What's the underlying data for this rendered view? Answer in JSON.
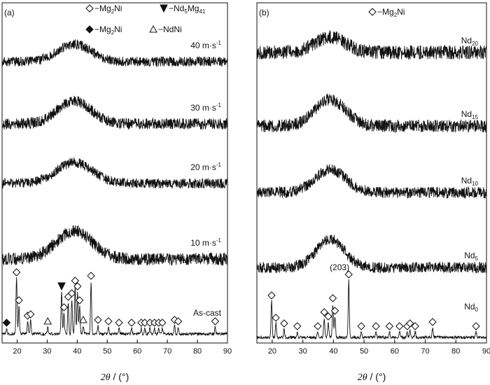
{
  "chart_data": [
    {
      "panel_label": "(a)",
      "type": "line",
      "xlim": [
        15,
        90
      ],
      "xticks": [
        20,
        30,
        40,
        50,
        60,
        70,
        80,
        90
      ],
      "xlabel": {
        "sym": "2θ",
        "unit": " / (°)"
      },
      "legend": [
        {
          "marker": "open-diamond",
          "text": "−Mg",
          "sub": "2",
          "text2": "Ni",
          "sub2": ""
        },
        {
          "marker": "filled-triangle-down",
          "text": "−Nd",
          "sub": "5",
          "text2": "Mg",
          "sub2": "41"
        },
        {
          "marker": "filled-diamond",
          "text": "−Mg",
          "sub": "2",
          "text2": "Ni",
          "sub2": ""
        },
        {
          "marker": "open-triangle",
          "text": "−NdNi",
          "sub": "",
          "text2": "",
          "sub2": ""
        }
      ],
      "legend_placement": "top",
      "series": [
        {
          "name": "40 m·s",
          "sup": "-1",
          "kind": "amorphous",
          "baseline": 88,
          "hump_center": 39,
          "hump_height": 25,
          "hump_width": 5.5,
          "noise": 7
        },
        {
          "name": "30 m·s",
          "sup": "-1",
          "kind": "amorphous",
          "baseline": 177,
          "hump_center": 39,
          "hump_height": 33,
          "hump_width": 5.5,
          "noise": 8
        },
        {
          "name": "20 m·s",
          "sup": "-1",
          "kind": "amorphous",
          "baseline": 262,
          "hump_center": 39,
          "hump_height": 30,
          "hump_width": 6,
          "noise": 7
        },
        {
          "name": "10 m·s",
          "sup": "-1",
          "kind": "amorphous",
          "baseline": 370,
          "hump_center": 39,
          "hump_height": 40,
          "hump_width": 6,
          "noise": 9
        },
        {
          "name": "As-cast",
          "sup": "",
          "kind": "crystalline",
          "baseline": 477,
          "noise": 2,
          "peaks": [
            {
              "x": 16.5,
              "h": 8,
              "marker": "filled-diamond"
            },
            {
              "x": 19.8,
              "h": 80,
              "marker": "open-diamond"
            },
            {
              "x": 20.6,
              "h": 40,
              "marker": "open-diamond"
            },
            {
              "x": 23.5,
              "h": 18,
              "marker": "open-diamond"
            },
            {
              "x": 24.5,
              "h": 20,
              "marker": "open-diamond"
            },
            {
              "x": 30.2,
              "h": 10,
              "marker": "open-triangle"
            },
            {
              "x": 34.8,
              "h": 60,
              "marker": "filled-triangle-down"
            },
            {
              "x": 35.6,
              "h": 30,
              "marker": "open-diamond"
            },
            {
              "x": 37.0,
              "h": 45,
              "marker": "open-diamond"
            },
            {
              "x": 38.2,
              "h": 50,
              "marker": "open-diamond"
            },
            {
              "x": 39.3,
              "h": 68,
              "marker": "open-diamond"
            },
            {
              "x": 40.1,
              "h": 60,
              "marker": "open-diamond"
            },
            {
              "x": 40.8,
              "h": 40,
              "marker": "open-diamond"
            },
            {
              "x": 42.0,
              "h": 12,
              "marker": "open-triangle"
            },
            {
              "x": 44.6,
              "h": 75,
              "marker": "open-diamond"
            },
            {
              "x": 46.9,
              "h": 12,
              "marker": "open-diamond"
            },
            {
              "x": 50.4,
              "h": 10,
              "marker": "open-diamond"
            },
            {
              "x": 53.9,
              "h": 8,
              "marker": "open-diamond"
            },
            {
              "x": 58.1,
              "h": 8,
              "marker": "open-diamond"
            },
            {
              "x": 61.3,
              "h": 8,
              "marker": "open-diamond"
            },
            {
              "x": 62.5,
              "h": 8,
              "marker": "open-diamond"
            },
            {
              "x": 64.2,
              "h": 8,
              "marker": "open-diamond"
            },
            {
              "x": 65.7,
              "h": 8,
              "marker": "open-diamond"
            },
            {
              "x": 67.1,
              "h": 8,
              "marker": "open-diamond"
            },
            {
              "x": 68.3,
              "h": 8,
              "marker": "open-diamond"
            },
            {
              "x": 72.4,
              "h": 12,
              "marker": "open-diamond"
            },
            {
              "x": 73.6,
              "h": 10,
              "marker": "open-diamond"
            },
            {
              "x": 85.9,
              "h": 10,
              "marker": "open-diamond"
            }
          ]
        }
      ]
    },
    {
      "panel_label": "(b)",
      "type": "line",
      "xlim": [
        15,
        90
      ],
      "xticks": [
        20,
        30,
        40,
        50,
        60,
        70,
        80,
        90
      ],
      "xlabel": {
        "sym": "2θ",
        "unit": " / (°)"
      },
      "legend": [
        {
          "marker": "open-diamond",
          "text": "−Mg",
          "sub": "2",
          "text2": "Ni",
          "sub2": ""
        }
      ],
      "legend_placement": "top",
      "series": [
        {
          "name": "Nd",
          "sub": "20",
          "kind": "amorphous",
          "baseline": 75,
          "hump_center": 39,
          "hump_height": 22,
          "hump_width": 5,
          "noise": 10
        },
        {
          "name": "Nd",
          "sub": "15",
          "kind": "amorphous",
          "baseline": 180,
          "hump_center": 39,
          "hump_height": 38,
          "hump_width": 5,
          "noise": 9
        },
        {
          "name": "Nd",
          "sub": "10",
          "kind": "amorphous",
          "baseline": 275,
          "hump_center": 39,
          "hump_height": 33,
          "hump_width": 5,
          "noise": 8
        },
        {
          "name": "Nd",
          "sub": "5",
          "kind": "amorphous",
          "baseline": 382,
          "hump_center": 39,
          "hump_height": 40,
          "hump_width": 4.5,
          "noise": 8
        },
        {
          "name": "Nd",
          "sub": "0",
          "kind": "crystalline",
          "baseline": 482,
          "noise": 2,
          "annotation": "(203)",
          "annotation_x": 42,
          "peaks": [
            {
              "x": 19.8,
              "h": 52,
              "marker": "open-diamond"
            },
            {
              "x": 21.2,
              "h": 20,
              "marker": "open-diamond"
            },
            {
              "x": 23.9,
              "h": 12,
              "marker": "open-diamond"
            },
            {
              "x": 28.2,
              "h": 8,
              "marker": "open-diamond"
            },
            {
              "x": 34.9,
              "h": 8,
              "marker": "open-diamond"
            },
            {
              "x": 37.0,
              "h": 28,
              "marker": "open-diamond"
            },
            {
              "x": 38.3,
              "h": 22,
              "marker": "open-diamond"
            },
            {
              "x": 39.8,
              "h": 48,
              "marker": "open-diamond"
            },
            {
              "x": 40.5,
              "h": 30,
              "marker": "open-diamond"
            },
            {
              "x": 45.0,
              "h": 82,
              "marker": "open-diamond"
            },
            {
              "x": 49.1,
              "h": 8,
              "marker": "open-diamond"
            },
            {
              "x": 53.9,
              "h": 8,
              "marker": "open-diamond"
            },
            {
              "x": 58.3,
              "h": 8,
              "marker": "open-diamond"
            },
            {
              "x": 61.6,
              "h": 8,
              "marker": "open-diamond"
            },
            {
              "x": 64.1,
              "h": 8,
              "marker": "open-diamond"
            },
            {
              "x": 65.0,
              "h": 12,
              "marker": "open-diamond"
            },
            {
              "x": 66.7,
              "h": 8,
              "marker": "open-diamond"
            },
            {
              "x": 72.4,
              "h": 14,
              "marker": "open-diamond"
            },
            {
              "x": 86.6,
              "h": 8,
              "marker": "open-diamond"
            }
          ]
        }
      ]
    }
  ]
}
